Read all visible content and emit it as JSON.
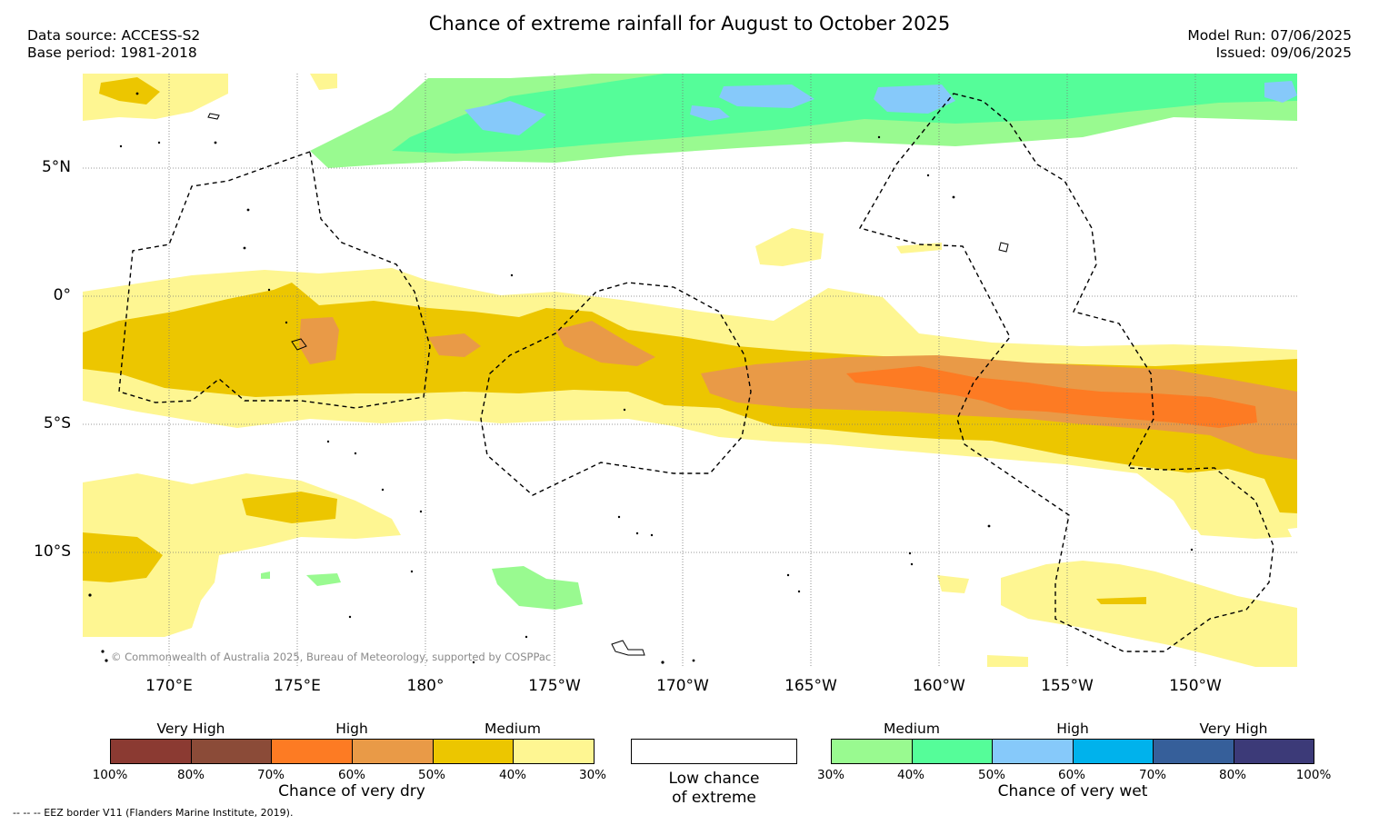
{
  "title": "Chance of extreme rainfall for August to October 2025",
  "header_left": {
    "data_source": "Data source: ACCESS-S2",
    "base_period": "Base period: 1981-2018"
  },
  "header_right": {
    "model_run": "Model Run: 07/06/2025",
    "issued": "Issued: 09/06/2025"
  },
  "map": {
    "lat_labels": [
      "5°N",
      "0°",
      "5°S",
      "10°S"
    ],
    "lon_labels": [
      "170°E",
      "175°E",
      "180°",
      "175°W",
      "170°W",
      "165°W",
      "160°W",
      "155°W",
      "150°W"
    ],
    "copyright": "© Commonwealth of Australia 2025, Bureau of Meteorology, supported by COSPPac",
    "colors": {
      "dry_medium_light": "#fef692",
      "dry_medium": "#ecc600",
      "dry_high_light": "#e99a47",
      "dry_high": "#fd7b23",
      "wet_medium": "#99fa90",
      "wet_medium_dark": "#55fd99",
      "wet_high": "#86c9fa"
    }
  },
  "legend": {
    "dry": {
      "groups": [
        "Very High",
        "High",
        "Medium"
      ],
      "ticks": [
        "100%",
        "80%",
        "70%",
        "60%",
        "50%",
        "40%",
        "30%"
      ],
      "caption": "Chance of very dry",
      "colors": [
        "#8b3a32",
        "#8b4b38",
        "#fd7b23",
        "#e99a47",
        "#ecc600",
        "#fef692"
      ]
    },
    "neutral": {
      "caption_line1": "Low chance",
      "caption_line2": "of extreme"
    },
    "wet": {
      "groups": [
        "Medium",
        "High",
        "Very High"
      ],
      "ticks": [
        "30%",
        "40%",
        "50%",
        "60%",
        "70%",
        "80%",
        "100%"
      ],
      "caption": "Chance of very wet",
      "colors": [
        "#99fa90",
        "#55fd99",
        "#86c9fa",
        "#00b2ec",
        "#365f9a",
        "#3c3a78"
      ]
    }
  },
  "footnote": "-- -- -- EEZ border V11 (Flanders Marine Institute, 2019)."
}
